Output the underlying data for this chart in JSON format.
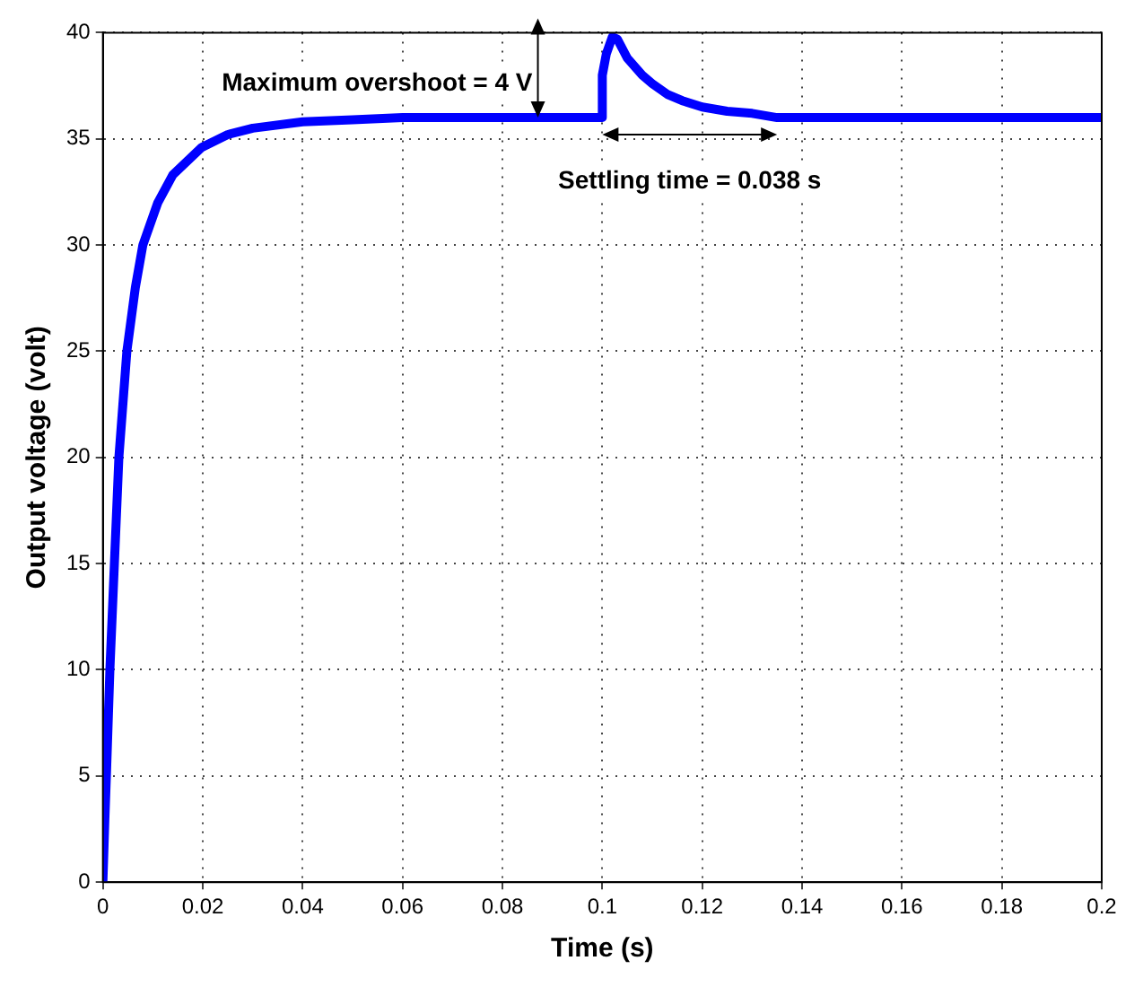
{
  "chart_data": {
    "type": "line",
    "xlabel": "Time (s)",
    "ylabel": "Output voltage (volt)",
    "series": [
      {
        "color": "#0000ff",
        "x": [
          0,
          0.0004,
          0.0007,
          0.0014,
          0.0023,
          0.0032,
          0.0048,
          0.0065,
          0.008,
          0.011,
          0.014,
          0.0198,
          0.025,
          0.03,
          0.04,
          0.05,
          0.06,
          0.08,
          0.0998,
          0.1,
          0.1008,
          0.102,
          0.103,
          0.105,
          0.108,
          0.11,
          0.113,
          0.116,
          0.12,
          0.125,
          0.13,
          0.135,
          0.15,
          0.17,
          0.2
        ],
        "values": [
          0,
          3,
          5,
          10,
          15,
          20,
          25,
          28,
          30,
          32,
          33.3,
          34.6,
          35.2,
          35.5,
          35.8,
          35.9,
          36,
          36,
          36,
          38,
          39,
          39.8,
          39.7,
          38.8,
          38,
          37.6,
          37.1,
          36.8,
          36.5,
          36.3,
          36.2,
          36,
          36,
          36,
          36
        ]
      }
    ],
    "xlim": [
      0,
      0.2
    ],
    "xticks": [
      0,
      0.02,
      0.04,
      0.06,
      0.08,
      0.1,
      0.12,
      0.14,
      0.16,
      0.18,
      0.2
    ],
    "ylim": [
      0,
      40
    ],
    "yticks": [
      0,
      5,
      10,
      15,
      20,
      25,
      30,
      35,
      40
    ],
    "grid": true,
    "legend": false,
    "marker": "none",
    "line_style": "solid",
    "annotations": [
      "Maximum overshoot = 4 V",
      "Settling time = 0.038 s"
    ]
  }
}
